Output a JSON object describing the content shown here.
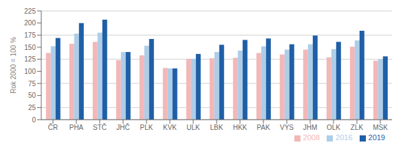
{
  "chart_data": {
    "type": "bar",
    "categories": [
      "ČR",
      "PHA",
      "STČ",
      "JHČ",
      "PLK",
      "KVK",
      "ULK",
      "LBK",
      "HKK",
      "PAK",
      "VYS",
      "JHM",
      "OLK",
      "ZLK",
      "MSK"
    ],
    "series": [
      {
        "name": "2008",
        "color": "#f2b8b8",
        "values": [
          138,
          157,
          161,
          123,
          133,
          107,
          126,
          127,
          128,
          138,
          135,
          145,
          129,
          151,
          122
        ]
      },
      {
        "name": "2016",
        "color": "#aecde8",
        "values": [
          152,
          178,
          180,
          140,
          153,
          106,
          126,
          140,
          143,
          152,
          145,
          156,
          146,
          164,
          125
        ]
      },
      {
        "name": "2019",
        "color": "#1f5fa6",
        "values": [
          169,
          200,
          207,
          140,
          167,
          106,
          136,
          155,
          165,
          168,
          156,
          174,
          161,
          184,
          131
        ]
      }
    ],
    "ylabel": "Rok 2000 = 100 %",
    "ylim": [
      0,
      225
    ],
    "yticks": [
      0,
      25,
      50,
      75,
      100,
      125,
      150,
      175,
      200,
      225
    ],
    "grid": true,
    "legend": "lower right"
  }
}
